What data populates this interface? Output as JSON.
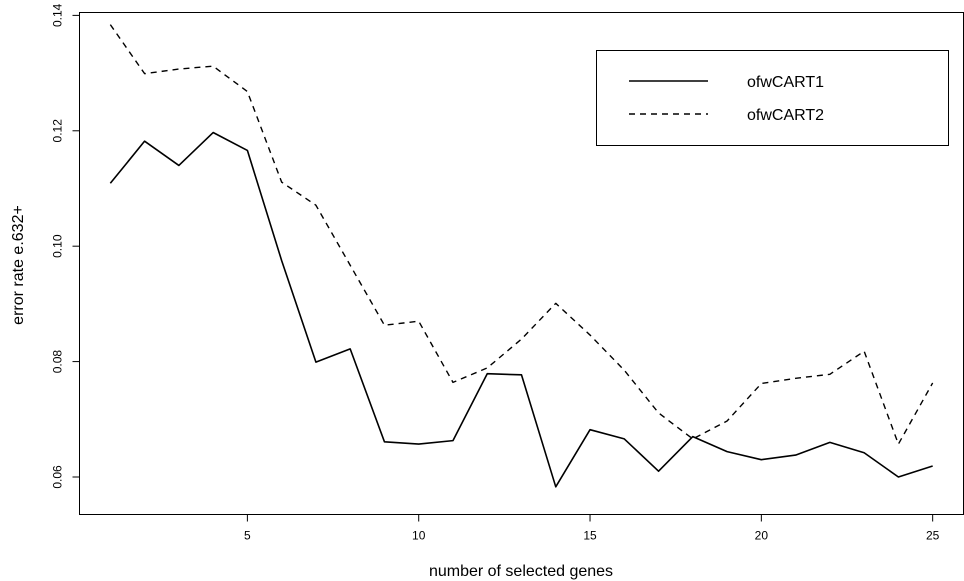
{
  "chart_data": {
    "type": "line",
    "title": "",
    "xlabel": "number of selected genes",
    "ylabel": "error rate e.632+",
    "xlim": [
      0.1,
      25.9
    ],
    "ylim": [
      0.0535,
      0.1405
    ],
    "x_ticks": [
      5,
      10,
      15,
      20,
      25
    ],
    "y_ticks": [
      0.06,
      0.08,
      0.1,
      0.12,
      0.14
    ],
    "y_tick_labels": [
      "0.06",
      "0.08",
      "0.10",
      "0.12",
      "0.14"
    ],
    "grid": false,
    "legend_position": "top-right",
    "x": [
      1,
      2,
      3,
      4,
      5,
      6,
      7,
      8,
      9,
      10,
      11,
      12,
      13,
      14,
      15,
      16,
      17,
      18,
      19,
      20,
      21,
      22,
      23,
      24,
      25
    ],
    "series": [
      {
        "name": "ofwCART1",
        "line_style": "solid",
        "values": [
          0.1109,
          0.1182,
          0.114,
          0.1197,
          0.1166,
          0.0975,
          0.0799,
          0.0822,
          0.0661,
          0.0657,
          0.0663,
          0.0779,
          0.0777,
          0.0583,
          0.0682,
          0.0666,
          0.061,
          0.067,
          0.0644,
          0.063,
          0.0638,
          0.066,
          0.0642,
          0.06,
          0.0619
        ]
      },
      {
        "name": "ofwCART2",
        "line_style": "dashed",
        "values": [
          0.1384,
          0.1299,
          0.1307,
          0.1312,
          0.1268,
          0.1111,
          0.1071,
          0.0967,
          0.0863,
          0.087,
          0.0764,
          0.0789,
          0.0839,
          0.0901,
          0.0846,
          0.0785,
          0.0711,
          0.0666,
          0.0697,
          0.0762,
          0.0771,
          0.0778,
          0.0818,
          0.0657,
          0.0763
        ]
      }
    ]
  }
}
